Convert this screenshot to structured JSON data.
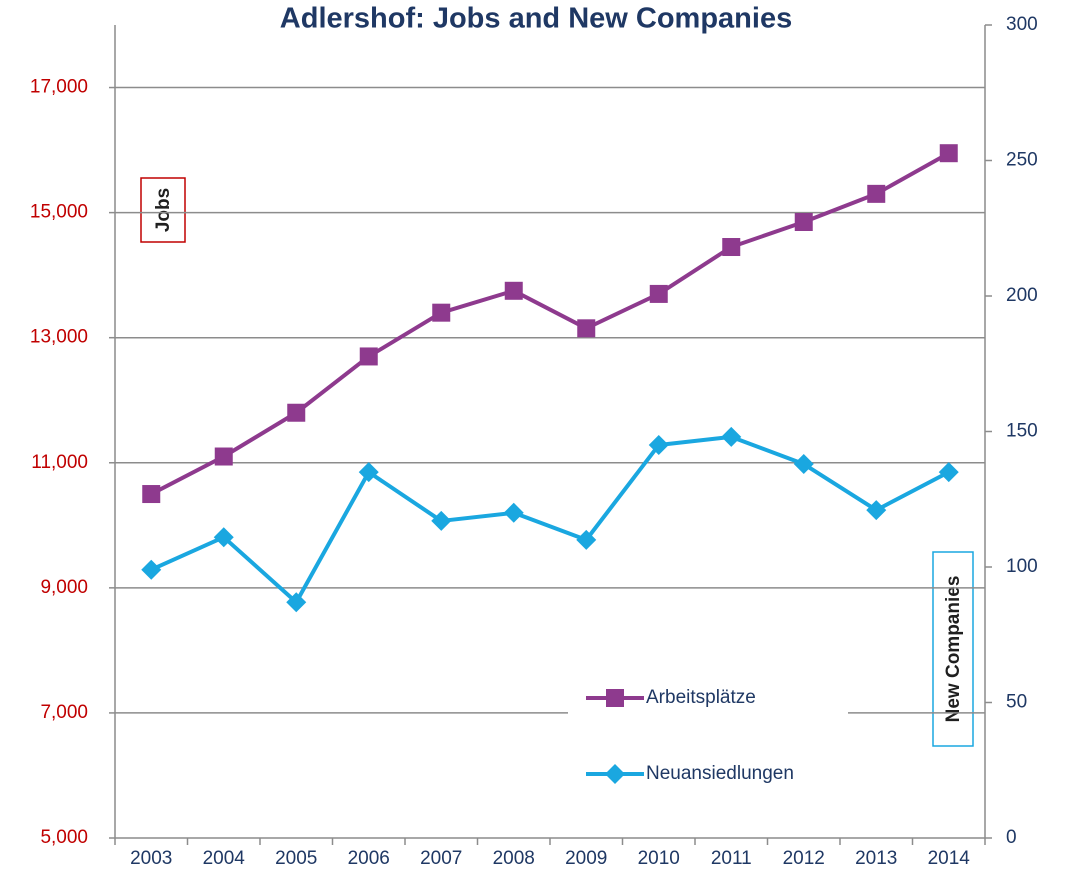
{
  "chart_data": {
    "type": "line",
    "title": "Adlershof: Jobs and New Companies",
    "categories": [
      "2003",
      "2004",
      "2005",
      "2006",
      "2007",
      "2008",
      "2009",
      "2010",
      "2011",
      "2012",
      "2013",
      "2014"
    ],
    "ylabel": "Jobs",
    "y2label": "New Companies",
    "ylim": [
      5000,
      18000
    ],
    "yticks": [
      {
        "value": 5000,
        "label": "5,000"
      },
      {
        "value": 7000,
        "label": "7,000"
      },
      {
        "value": 9000,
        "label": "9,000"
      },
      {
        "value": 11000,
        "label": "11,000"
      },
      {
        "value": 13000,
        "label": "13,000"
      },
      {
        "value": 15000,
        "label": "15,000"
      },
      {
        "value": 17000,
        "label": "17,000"
      }
    ],
    "y2lim": [
      0,
      300
    ],
    "y2ticks": [
      0,
      50,
      100,
      150,
      200,
      250,
      300
    ],
    "grid": true,
    "series": [
      {
        "name": "Arbeitsplätze",
        "color": "#8e3a8e",
        "marker": "square",
        "axis": "y",
        "values": [
          10500,
          11100,
          11800,
          12700,
          13400,
          13750,
          13150,
          13700,
          14450,
          14850,
          15300,
          15950
        ]
      },
      {
        "name": "Neuansiedlungen",
        "color": "#1aa7e0",
        "marker": "diamond",
        "axis": "y2",
        "values": [
          99,
          111,
          87,
          135,
          117,
          120,
          110,
          145,
          148,
          138,
          121,
          135
        ]
      }
    ]
  }
}
